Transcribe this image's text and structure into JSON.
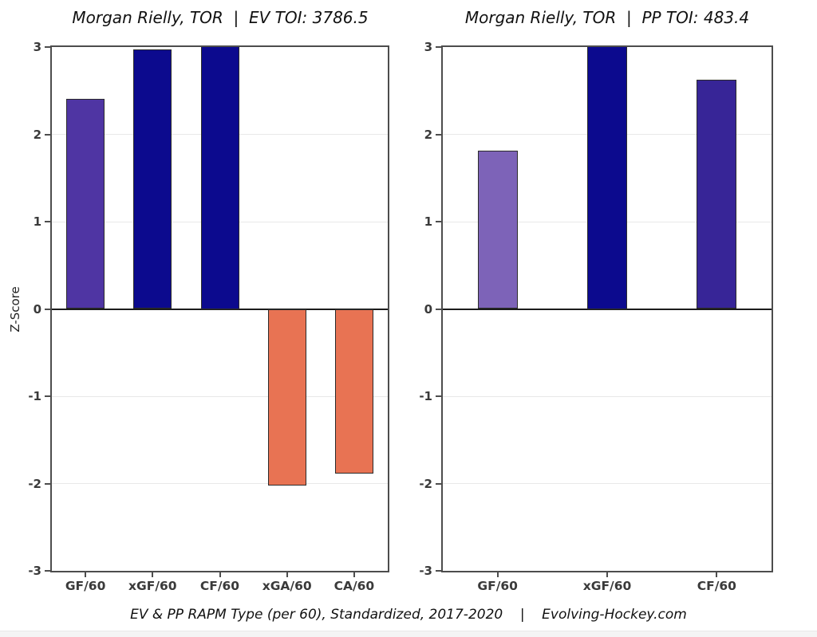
{
  "page": {
    "caption": "EV & PP RAPM Type (per 60), Standardized, 2017-2020    |    Evolving-Hockey.com",
    "background_color": "#ffffff"
  },
  "colors": {
    "navy": "#0c0a8e",
    "purple_mid": "#4f35a3",
    "purple_light": "#7d63b8",
    "indigo": "#372597",
    "salmon": "#e87353",
    "spine": "#4d4d4d",
    "zero_line": "#1c1c1c",
    "gridline": "#e8e8e8",
    "tick_text": "#3a3a3a"
  },
  "chart_data": [
    {
      "type": "bar",
      "title": "Morgan Rielly, TOR  |  EV TOI: 3786.5",
      "ylabel": "Z-Score",
      "xlabel": "",
      "ylim": [
        -3,
        3
      ],
      "yticks": [
        3,
        2,
        1,
        0,
        -1,
        -2,
        -3
      ],
      "grid": true,
      "legend": false,
      "categories": [
        "GF/60",
        "xGF/60",
        "CF/60",
        "xGA/60",
        "CA/60"
      ],
      "values": [
        2.41,
        2.97,
        3.0,
        -2.02,
        -1.89
      ],
      "bar_colors": [
        "#4f35a3",
        "#0c0a8e",
        "#0c0a8e",
        "#e87353",
        "#e87353"
      ]
    },
    {
      "type": "bar",
      "title": "Morgan Rielly, TOR  |  PP TOI: 483.4",
      "ylabel": "",
      "xlabel": "",
      "ylim": [
        -3,
        3
      ],
      "yticks": [
        3,
        2,
        1,
        0,
        -1,
        -2,
        -3
      ],
      "grid": true,
      "legend": false,
      "categories": [
        "GF/60",
        "xGF/60",
        "CF/60"
      ],
      "values": [
        1.81,
        3.0,
        2.63
      ],
      "bar_colors": [
        "#7d63b8",
        "#0c0a8e",
        "#372597"
      ]
    }
  ]
}
